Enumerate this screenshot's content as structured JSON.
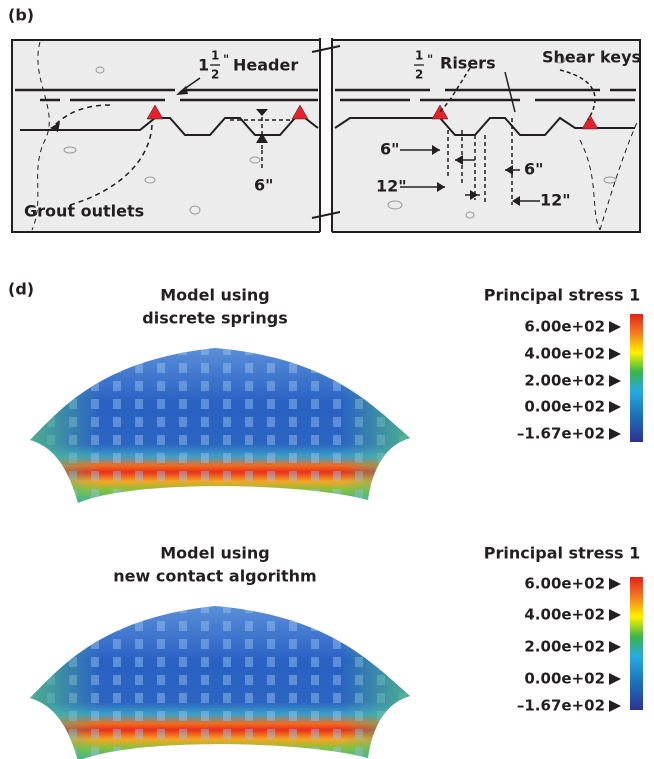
{
  "panel_b": {
    "label": "(b)",
    "header": {
      "whole": "1",
      "numerator": "1",
      "denominator": "2",
      "unit": "\"",
      "text": "Header"
    },
    "risers": {
      "numerator": "1",
      "denominator": "2",
      "unit": "\"",
      "text": "Risers"
    },
    "shear_keys": "Shear keys",
    "grout_outlets": "Grout outlets",
    "header_depth": "6\"",
    "dimensions": [
      "6\"",
      "6\"",
      "12\"",
      "12\""
    ]
  },
  "panel_d": {
    "label": "(d)",
    "models": [
      {
        "title": [
          "Model using",
          "discrete springs"
        ],
        "colorbar": {
          "title": "Principal stress 1",
          "labels": [
            "6.00e+02",
            "4.00e+02",
            "2.00e+02",
            "0.00e+02",
            "–1.67e+02"
          ]
        }
      },
      {
        "title": [
          "Model using",
          "new contact algorithm"
        ],
        "colorbar": {
          "title": "Principal stress 1",
          "labels": [
            "6.00e+02",
            "4.00e+02",
            "2.00e+02",
            "0.00e+02",
            "–1.67e+02"
          ]
        }
      }
    ]
  }
}
